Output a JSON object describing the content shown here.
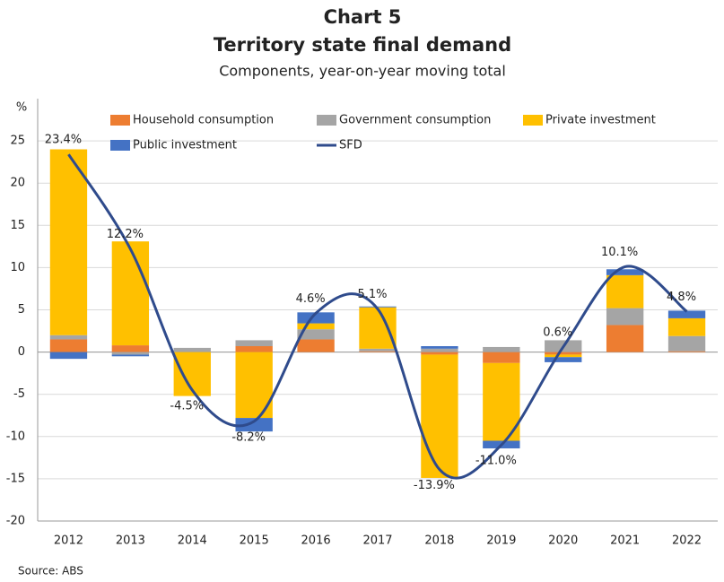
{
  "chart_data": {
    "type": "bar",
    "stacked": true,
    "title": "Chart 5",
    "subtitle": "Territory state final demand",
    "description": "Components, year-on-year moving total",
    "y_axis_label": "%",
    "source": "Source: ABS",
    "categories": [
      "2012",
      "2013",
      "2014",
      "2015",
      "2016",
      "2017",
      "2018",
      "2019",
      "2020",
      "2021",
      "2022"
    ],
    "series": [
      {
        "name": "Household consumption",
        "color": "#ed7d31",
        "values": [
          1.5,
          0.8,
          0,
          0.7,
          1.5,
          0.1,
          -0.3,
          -1.3,
          -0.3,
          3.2,
          0.1
        ]
      },
      {
        "name": "Government consumption",
        "color": "#a5a5a5",
        "values": [
          0.5,
          -0.3,
          0.5,
          0.7,
          1.2,
          0.3,
          0.4,
          0.6,
          1.4,
          2.0,
          1.8
        ]
      },
      {
        "name": "Private investment",
        "color": "#ffc000",
        "values": [
          22.0,
          12.3,
          -5.2,
          -7.8,
          0.7,
          4.9,
          -14.6,
          -9.2,
          -0.3,
          3.9,
          2.1
        ]
      },
      {
        "name": "Public investment",
        "color": "#4472c4",
        "values": [
          -0.8,
          -0.2,
          0,
          -1.6,
          1.3,
          0.1,
          0.3,
          -0.9,
          -0.6,
          0.7,
          0.9
        ]
      },
      {
        "name": "SFD",
        "type": "line",
        "color": "#2f4b8c",
        "values": [
          23.4,
          12.2,
          -4.5,
          -8.2,
          4.6,
          5.1,
          -13.9,
          -11.0,
          0.6,
          10.1,
          4.8
        ],
        "value_labels": [
          "23.4%",
          "12.2%",
          "-4.5%",
          "-8.2%",
          "4.6%",
          "5.1%",
          "-13.9%",
          "-11.0%",
          "0.6%",
          "10.1%",
          "4.8%"
        ]
      }
    ],
    "ylim": [
      -20,
      30
    ],
    "yticks": [
      -20,
      -15,
      -10,
      -5,
      0,
      5,
      10,
      15,
      20,
      25
    ],
    "grid": true,
    "legend": "top"
  }
}
